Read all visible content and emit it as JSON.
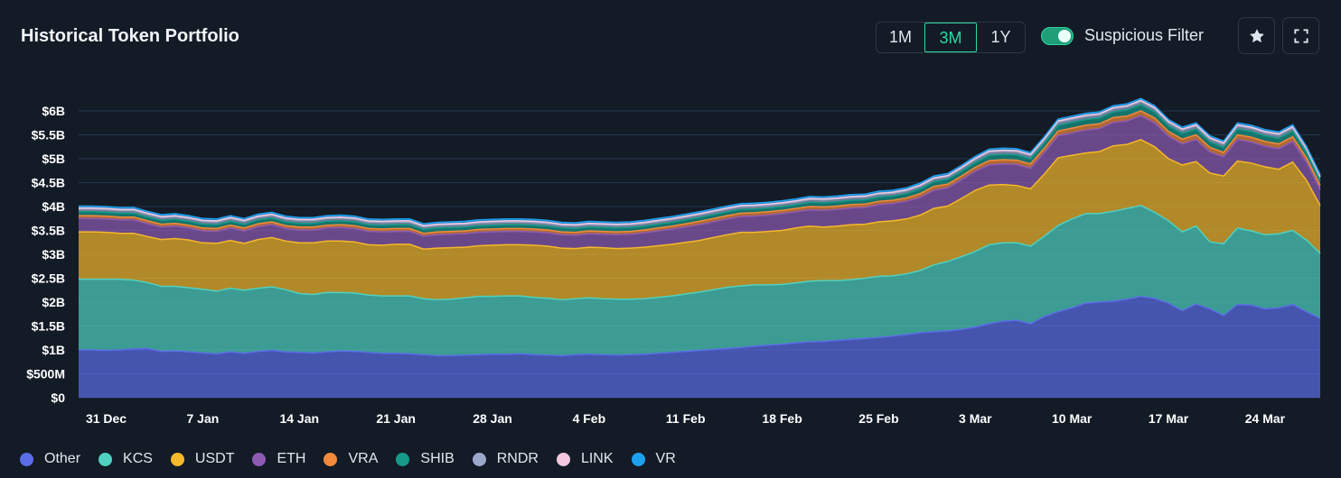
{
  "header": {
    "title": "Historical Token Portfolio",
    "ranges": [
      "1M",
      "3M",
      "1Y"
    ],
    "active_range": "3M",
    "filter_label": "Suspicious Filter",
    "filter_on": true
  },
  "icons": {
    "favorite": "star-icon",
    "fullscreen": "fullscreen-icon"
  },
  "colors": {
    "background": "#131b26",
    "accent": "#2fd6a0",
    "Other": "#5b6ee8",
    "KCS": "#4fd1c1",
    "USDT": "#f5b82a",
    "ETH": "#8e5bb3",
    "VRA": "#f28a3c",
    "SHIB": "#169a8a",
    "RNDR": "#9aa8c9",
    "LINK": "#f5c8e0",
    "VR": "#1ea0f0"
  },
  "chart_data": {
    "type": "area",
    "stacked": true,
    "title": "Historical Token Portfolio",
    "xlabel": "",
    "ylabel": "",
    "y_unit": "USD",
    "ylim": [
      0,
      6000000000
    ],
    "y_ticks": [
      {
        "value": 0,
        "label": "$0"
      },
      {
        "value": 500000000,
        "label": "$500M"
      },
      {
        "value": 1000000000,
        "label": "$1B"
      },
      {
        "value": 1500000000,
        "label": "$1.5B"
      },
      {
        "value": 2000000000,
        "label": "$2B"
      },
      {
        "value": 2500000000,
        "label": "$2.5B"
      },
      {
        "value": 3000000000,
        "label": "$3B"
      },
      {
        "value": 3500000000,
        "label": "$3.5B"
      },
      {
        "value": 4000000000,
        "label": "$4B"
      },
      {
        "value": 4500000000,
        "label": "$4.5B"
      },
      {
        "value": 5000000000,
        "label": "$5B"
      },
      {
        "value": 5500000000,
        "label": "$5.5B"
      },
      {
        "value": 6000000000,
        "label": "$6B"
      }
    ],
    "x_ticks": [
      {
        "index": 2,
        "label": "31 Dec"
      },
      {
        "index": 9,
        "label": "7 Jan"
      },
      {
        "index": 16,
        "label": "14 Jan"
      },
      {
        "index": 23,
        "label": "21 Jan"
      },
      {
        "index": 30,
        "label": "28 Jan"
      },
      {
        "index": 37,
        "label": "4 Feb"
      },
      {
        "index": 44,
        "label": "11 Feb"
      },
      {
        "index": 51,
        "label": "18 Feb"
      },
      {
        "index": 58,
        "label": "25 Feb"
      },
      {
        "index": 65,
        "label": "3 Mar"
      },
      {
        "index": 72,
        "label": "10 Mar"
      },
      {
        "index": 79,
        "label": "17 Mar"
      },
      {
        "index": 86,
        "label": "24 Mar"
      }
    ],
    "x_start": "29 Dec",
    "x_end": "28 Mar",
    "series_order": [
      "Other",
      "KCS",
      "USDT",
      "ETH",
      "VRA",
      "SHIB",
      "RNDR",
      "LINK",
      "VR"
    ],
    "series": [
      {
        "name": "Other",
        "values": [
          1.0,
          1.0,
          0.99,
          1.0,
          1.02,
          1.03,
          0.97,
          0.98,
          0.96,
          0.94,
          0.92,
          0.96,
          0.93,
          0.97,
          0.99,
          0.96,
          0.95,
          0.94,
          0.96,
          0.98,
          0.97,
          0.95,
          0.93,
          0.93,
          0.92,
          0.9,
          0.88,
          0.88,
          0.89,
          0.9,
          0.91,
          0.91,
          0.92,
          0.9,
          0.89,
          0.88,
          0.9,
          0.91,
          0.9,
          0.89,
          0.9,
          0.91,
          0.93,
          0.95,
          0.97,
          0.99,
          1.01,
          1.03,
          1.05,
          1.08,
          1.1,
          1.12,
          1.15,
          1.17,
          1.18,
          1.2,
          1.22,
          1.24,
          1.26,
          1.29,
          1.32,
          1.36,
          1.38,
          1.4,
          1.43,
          1.48,
          1.55,
          1.6,
          1.62,
          1.55,
          1.7,
          1.8,
          1.88,
          1.98,
          2.0,
          2.02,
          2.06,
          2.12,
          2.08,
          1.98,
          1.82,
          1.96,
          1.86,
          1.72,
          1.95,
          1.94,
          1.86,
          1.88,
          1.95,
          1.8,
          1.66
        ]
      },
      {
        "name": "KCS",
        "values": [
          1.48,
          1.48,
          1.49,
          1.48,
          1.44,
          1.38,
          1.36,
          1.35,
          1.34,
          1.33,
          1.31,
          1.33,
          1.32,
          1.32,
          1.33,
          1.3,
          1.23,
          1.22,
          1.24,
          1.22,
          1.22,
          1.2,
          1.2,
          1.2,
          1.21,
          1.17,
          1.17,
          1.18,
          1.2,
          1.22,
          1.21,
          1.22,
          1.21,
          1.2,
          1.19,
          1.17,
          1.17,
          1.18,
          1.17,
          1.17,
          1.16,
          1.16,
          1.17,
          1.18,
          1.2,
          1.22,
          1.25,
          1.28,
          1.29,
          1.28,
          1.26,
          1.25,
          1.25,
          1.27,
          1.27,
          1.25,
          1.25,
          1.26,
          1.28,
          1.26,
          1.27,
          1.3,
          1.4,
          1.45,
          1.52,
          1.58,
          1.65,
          1.64,
          1.62,
          1.62,
          1.68,
          1.8,
          1.86,
          1.87,
          1.85,
          1.88,
          1.9,
          1.9,
          1.8,
          1.72,
          1.65,
          1.63,
          1.4,
          1.5,
          1.6,
          1.55,
          1.55,
          1.55,
          1.55,
          1.5,
          1.36
        ]
      },
      {
        "name": "USDT",
        "values": [
          0.99,
          0.99,
          0.98,
          0.96,
          0.98,
          0.96,
          0.98,
          1.0,
          1.0,
          0.97,
          1.0,
          1.0,
          0.98,
          1.02,
          1.03,
          1.02,
          1.06,
          1.08,
          1.08,
          1.08,
          1.07,
          1.05,
          1.06,
          1.08,
          1.08,
          1.04,
          1.08,
          1.08,
          1.06,
          1.06,
          1.07,
          1.07,
          1.07,
          1.09,
          1.09,
          1.08,
          1.05,
          1.06,
          1.07,
          1.06,
          1.07,
          1.08,
          1.08,
          1.08,
          1.08,
          1.08,
          1.09,
          1.1,
          1.12,
          1.1,
          1.12,
          1.13,
          1.15,
          1.15,
          1.12,
          1.14,
          1.15,
          1.13,
          1.14,
          1.15,
          1.15,
          1.16,
          1.18,
          1.16,
          1.22,
          1.28,
          1.25,
          1.22,
          1.2,
          1.2,
          1.3,
          1.42,
          1.33,
          1.27,
          1.3,
          1.37,
          1.34,
          1.38,
          1.37,
          1.3,
          1.4,
          1.35,
          1.44,
          1.42,
          1.4,
          1.42,
          1.42,
          1.35,
          1.43,
          1.25,
          1.0
        ]
      },
      {
        "name": "ETH",
        "values": [
          0.28,
          0.28,
          0.28,
          0.28,
          0.28,
          0.27,
          0.26,
          0.26,
          0.25,
          0.25,
          0.25,
          0.26,
          0.26,
          0.27,
          0.27,
          0.26,
          0.27,
          0.27,
          0.27,
          0.28,
          0.28,
          0.28,
          0.28,
          0.27,
          0.27,
          0.27,
          0.28,
          0.28,
          0.28,
          0.28,
          0.28,
          0.28,
          0.28,
          0.28,
          0.28,
          0.28,
          0.28,
          0.28,
          0.28,
          0.29,
          0.29,
          0.3,
          0.31,
          0.32,
          0.32,
          0.33,
          0.33,
          0.33,
          0.33,
          0.34,
          0.34,
          0.35,
          0.34,
          0.34,
          0.35,
          0.35,
          0.35,
          0.35,
          0.36,
          0.36,
          0.37,
          0.37,
          0.38,
          0.38,
          0.39,
          0.4,
          0.42,
          0.43,
          0.44,
          0.43,
          0.45,
          0.46,
          0.47,
          0.48,
          0.48,
          0.49,
          0.49,
          0.5,
          0.5,
          0.47,
          0.44,
          0.46,
          0.44,
          0.4,
          0.45,
          0.44,
          0.43,
          0.43,
          0.43,
          0.38,
          0.33
        ]
      },
      {
        "name": "VRA",
        "values": [
          0.06,
          0.06,
          0.06,
          0.06,
          0.06,
          0.06,
          0.06,
          0.06,
          0.06,
          0.06,
          0.06,
          0.06,
          0.06,
          0.06,
          0.06,
          0.06,
          0.06,
          0.06,
          0.06,
          0.06,
          0.06,
          0.06,
          0.06,
          0.06,
          0.06,
          0.06,
          0.06,
          0.06,
          0.06,
          0.06,
          0.06,
          0.06,
          0.06,
          0.06,
          0.06,
          0.06,
          0.06,
          0.06,
          0.06,
          0.06,
          0.06,
          0.06,
          0.06,
          0.06,
          0.07,
          0.07,
          0.07,
          0.07,
          0.07,
          0.07,
          0.07,
          0.07,
          0.07,
          0.07,
          0.07,
          0.07,
          0.07,
          0.07,
          0.07,
          0.07,
          0.07,
          0.08,
          0.08,
          0.08,
          0.08,
          0.08,
          0.09,
          0.09,
          0.09,
          0.09,
          0.09,
          0.1,
          0.1,
          0.1,
          0.1,
          0.1,
          0.1,
          0.1,
          0.1,
          0.1,
          0.1,
          0.1,
          0.1,
          0.09,
          0.1,
          0.1,
          0.1,
          0.1,
          0.1,
          0.09,
          0.09
        ]
      },
      {
        "name": "SHIB",
        "values": [
          0.08,
          0.08,
          0.08,
          0.08,
          0.08,
          0.08,
          0.08,
          0.08,
          0.08,
          0.08,
          0.08,
          0.08,
          0.08,
          0.08,
          0.08,
          0.08,
          0.08,
          0.08,
          0.08,
          0.08,
          0.08,
          0.08,
          0.08,
          0.08,
          0.08,
          0.08,
          0.08,
          0.08,
          0.08,
          0.08,
          0.08,
          0.08,
          0.08,
          0.08,
          0.08,
          0.08,
          0.08,
          0.08,
          0.08,
          0.08,
          0.08,
          0.08,
          0.08,
          0.08,
          0.08,
          0.08,
          0.08,
          0.08,
          0.08,
          0.08,
          0.08,
          0.08,
          0.08,
          0.09,
          0.09,
          0.09,
          0.09,
          0.09,
          0.09,
          0.09,
          0.09,
          0.1,
          0.1,
          0.1,
          0.1,
          0.1,
          0.11,
          0.11,
          0.11,
          0.11,
          0.11,
          0.12,
          0.12,
          0.12,
          0.12,
          0.12,
          0.13,
          0.13,
          0.13,
          0.12,
          0.12,
          0.12,
          0.11,
          0.11,
          0.12,
          0.12,
          0.12,
          0.12,
          0.12,
          0.11,
          0.1
        ]
      },
      {
        "name": "RNDR",
        "values": [
          0.06,
          0.06,
          0.06,
          0.06,
          0.06,
          0.06,
          0.06,
          0.06,
          0.06,
          0.06,
          0.06,
          0.06,
          0.06,
          0.06,
          0.06,
          0.06,
          0.06,
          0.06,
          0.06,
          0.06,
          0.06,
          0.06,
          0.06,
          0.06,
          0.06,
          0.06,
          0.06,
          0.06,
          0.06,
          0.06,
          0.06,
          0.06,
          0.06,
          0.06,
          0.06,
          0.06,
          0.06,
          0.06,
          0.06,
          0.06,
          0.06,
          0.06,
          0.06,
          0.06,
          0.06,
          0.06,
          0.06,
          0.06,
          0.06,
          0.06,
          0.06,
          0.06,
          0.06,
          0.06,
          0.06,
          0.06,
          0.06,
          0.06,
          0.06,
          0.06,
          0.06,
          0.06,
          0.06,
          0.06,
          0.06,
          0.07,
          0.07,
          0.07,
          0.07,
          0.07,
          0.07,
          0.07,
          0.07,
          0.07,
          0.07,
          0.07,
          0.07,
          0.07,
          0.07,
          0.07,
          0.07,
          0.07,
          0.07,
          0.07,
          0.07,
          0.07,
          0.07,
          0.07,
          0.07,
          0.07,
          0.07
        ]
      },
      {
        "name": "LINK",
        "values": [
          0.02,
          0.02,
          0.02,
          0.02,
          0.02,
          0.02,
          0.02,
          0.02,
          0.02,
          0.02,
          0.02,
          0.02,
          0.02,
          0.02,
          0.02,
          0.02,
          0.02,
          0.02,
          0.02,
          0.02,
          0.02,
          0.02,
          0.02,
          0.02,
          0.02,
          0.02,
          0.02,
          0.02,
          0.02,
          0.02,
          0.02,
          0.02,
          0.02,
          0.02,
          0.02,
          0.02,
          0.02,
          0.02,
          0.02,
          0.02,
          0.02,
          0.02,
          0.02,
          0.02,
          0.02,
          0.02,
          0.02,
          0.02,
          0.02,
          0.02,
          0.02,
          0.02,
          0.02,
          0.02,
          0.02,
          0.02,
          0.02,
          0.02,
          0.02,
          0.02,
          0.02,
          0.02,
          0.02,
          0.02,
          0.02,
          0.02,
          0.02,
          0.02,
          0.02,
          0.02,
          0.02,
          0.02,
          0.02,
          0.02,
          0.02,
          0.02,
          0.02,
          0.02,
          0.02,
          0.02,
          0.02,
          0.02,
          0.02,
          0.02,
          0.02,
          0.02,
          0.02,
          0.02,
          0.02,
          0.02,
          0.02
        ]
      },
      {
        "name": "VR",
        "values": [
          0.04,
          0.04,
          0.04,
          0.04,
          0.04,
          0.04,
          0.04,
          0.04,
          0.04,
          0.04,
          0.04,
          0.04,
          0.04,
          0.04,
          0.04,
          0.04,
          0.04,
          0.04,
          0.04,
          0.04,
          0.04,
          0.04,
          0.04,
          0.04,
          0.04,
          0.04,
          0.04,
          0.04,
          0.04,
          0.04,
          0.04,
          0.04,
          0.04,
          0.04,
          0.04,
          0.04,
          0.04,
          0.04,
          0.04,
          0.04,
          0.04,
          0.04,
          0.04,
          0.04,
          0.04,
          0.04,
          0.04,
          0.04,
          0.04,
          0.04,
          0.04,
          0.04,
          0.04,
          0.04,
          0.04,
          0.04,
          0.04,
          0.04,
          0.04,
          0.04,
          0.04,
          0.04,
          0.04,
          0.04,
          0.04,
          0.04,
          0.04,
          0.04,
          0.04,
          0.04,
          0.04,
          0.04,
          0.04,
          0.04,
          0.04,
          0.04,
          0.04,
          0.04,
          0.04,
          0.04,
          0.04,
          0.04,
          0.04,
          0.04,
          0.04,
          0.04,
          0.04,
          0.04,
          0.04,
          0.04,
          0.04
        ]
      }
    ],
    "values_scale": "billions USD",
    "legend_position": "bottom-left",
    "grid": true
  }
}
